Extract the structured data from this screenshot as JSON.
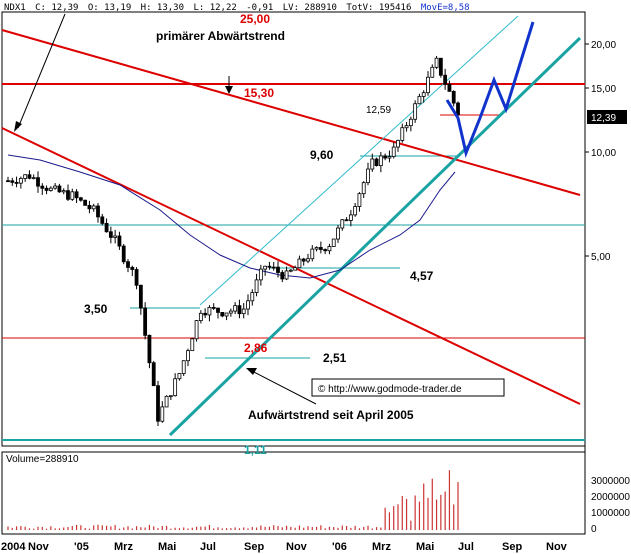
{
  "header": {
    "symbol": "NDX1",
    "open": "C: 12,39",
    "o": "O: 13,19",
    "h": "H: 13,30",
    "l": "L: 12,22",
    "chg": "-0,91",
    "lv": "LV: 288910",
    "totv": "TotV: 195416",
    "move": "MovE=8,58"
  },
  "price_tag": "12,39",
  "volume_header": "Volume=288910",
  "copyright": "© http://www.godmode-trader.de",
  "annotations": {
    "top_level": "25,00",
    "primary_trend": "primärer Abwärtstrend",
    "resistance": "15,30",
    "v_12_59": "12,59",
    "v_9_60": "9,60",
    "v_4_57": "4,57",
    "v_3_50": "3,50",
    "v_2_86": "2,86",
    "v_2_51": "2,51",
    "uptrend": "Aufwärtstrend seit April 2005",
    "bottom_level": "1,11"
  },
  "colors": {
    "candle_up": "#000000",
    "candle_down": "#000000",
    "red_line": "#dd0000",
    "teal_line": "#1aa3a3",
    "blue_projection": "#1133cc",
    "ma_line": "#1a1a8c",
    "light_teal": "#33bbcc",
    "volume": "#cc3333"
  },
  "chart_data": {
    "type": "candlestick",
    "yscale": "log",
    "ylim": [
      1.1,
      25
    ],
    "y_ticks": [
      "20,00",
      "15,00",
      "10,00",
      "5,00"
    ],
    "x_ticks": [
      "2004",
      "Nov",
      "'05",
      "Mrz",
      "Mai",
      "Jul",
      "Sep",
      "Nov",
      "'06",
      "Mrz",
      "Mai",
      "Jul",
      "Sep",
      "Nov"
    ],
    "volume_ticks": [
      "3000000",
      "2000000",
      "1000000",
      "0"
    ],
    "series": [
      {
        "x": "2004-09",
        "close": 7.5
      },
      {
        "x": "2004-10",
        "close": 7.8
      },
      {
        "x": "2004-11",
        "close": 7.0
      },
      {
        "x": "2004-12",
        "close": 6.7
      },
      {
        "x": "2005-01",
        "close": 6.0
      },
      {
        "x": "2005-02",
        "close": 4.8
      },
      {
        "x": "2005-03",
        "close": 3.6
      },
      {
        "x": "2005-04",
        "close": 1.3
      },
      {
        "x": "2005-05",
        "close": 1.8
      },
      {
        "x": "2005-06",
        "close": 2.9
      },
      {
        "x": "2005-07",
        "close": 2.85
      },
      {
        "x": "2005-08",
        "close": 2.9
      },
      {
        "x": "2005-09",
        "close": 4.0
      },
      {
        "x": "2005-10",
        "close": 3.7
      },
      {
        "x": "2005-11",
        "close": 4.3
      },
      {
        "x": "2005-12",
        "close": 4.7
      },
      {
        "x": "2006-01",
        "close": 6.0
      },
      {
        "x": "2006-02",
        "close": 8.5
      },
      {
        "x": "2006-03",
        "close": 9.4
      },
      {
        "x": "2006-04",
        "close": 13.0
      },
      {
        "x": "2006-05",
        "close": 18.0
      },
      {
        "x": "2006-06",
        "close": 12.4
      }
    ]
  }
}
